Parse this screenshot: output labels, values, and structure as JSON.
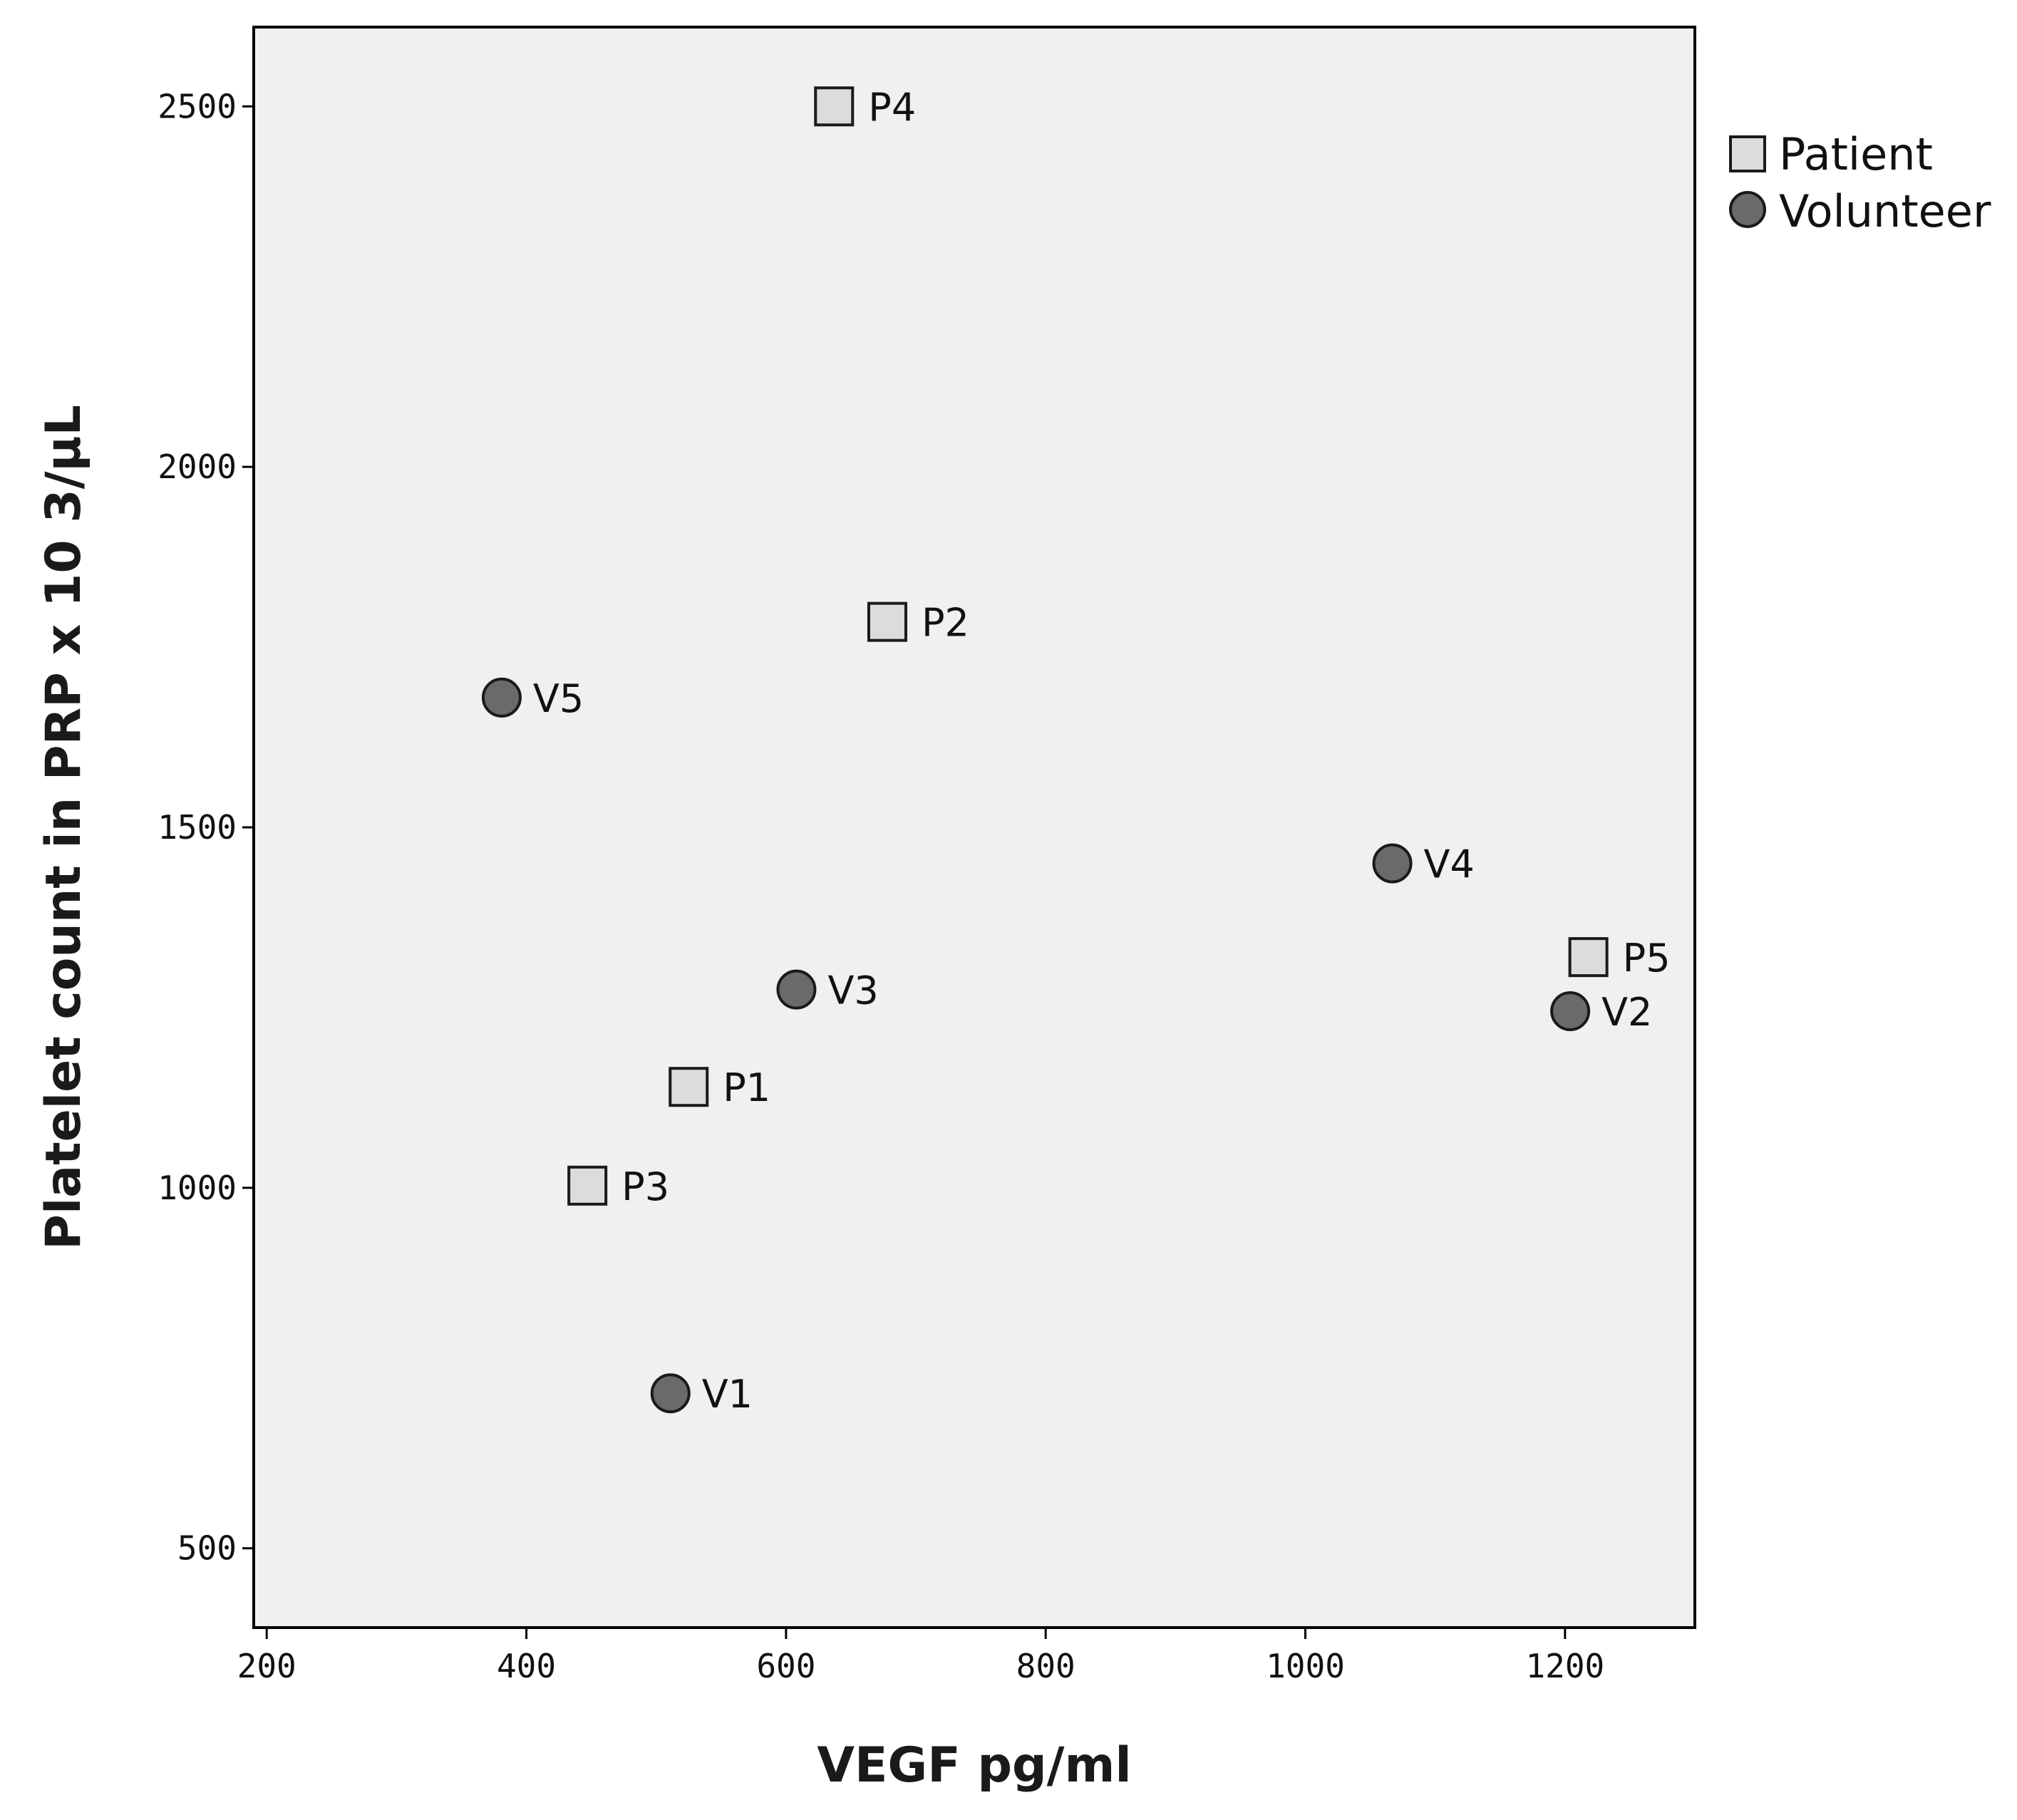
{
  "chart_data": {
    "type": "scatter",
    "title": "",
    "xlabel": "VEGF pg/ml",
    "ylabel": "Platelet count in PRP x 10 3/µL",
    "xlim": [
      190,
      1300
    ],
    "ylim": [
      390,
      2610
    ],
    "xticks": [
      200,
      400,
      600,
      800,
      1000,
      1200
    ],
    "yticks": [
      500,
      1000,
      1500,
      2000,
      2500
    ],
    "grid": false,
    "legend_position": "right-top outside",
    "colors": {
      "plot_background": "#f0f0f0",
      "patient_fill": "#dcdcdc",
      "volunteer_fill": "#6a6a6a",
      "marker_stroke": "#1a1a1a"
    },
    "series": [
      {
        "name": "Patient",
        "marker": "square",
        "points": [
          {
            "label": "P1",
            "x": 525,
            "y": 1140
          },
          {
            "label": "P2",
            "x": 678,
            "y": 1785
          },
          {
            "label": "P3",
            "x": 447,
            "y": 1003
          },
          {
            "label": "P4",
            "x": 637,
            "y": 2500
          },
          {
            "label": "P5",
            "x": 1218,
            "y": 1320
          }
        ]
      },
      {
        "name": "Volunteer",
        "marker": "circle",
        "points": [
          {
            "label": "V1",
            "x": 511,
            "y": 715
          },
          {
            "label": "V2",
            "x": 1204,
            "y": 1245
          },
          {
            "label": "V3",
            "x": 608,
            "y": 1275
          },
          {
            "label": "V4",
            "x": 1067,
            "y": 1450
          },
          {
            "label": "V5",
            "x": 381,
            "y": 1680
          }
        ]
      }
    ]
  }
}
